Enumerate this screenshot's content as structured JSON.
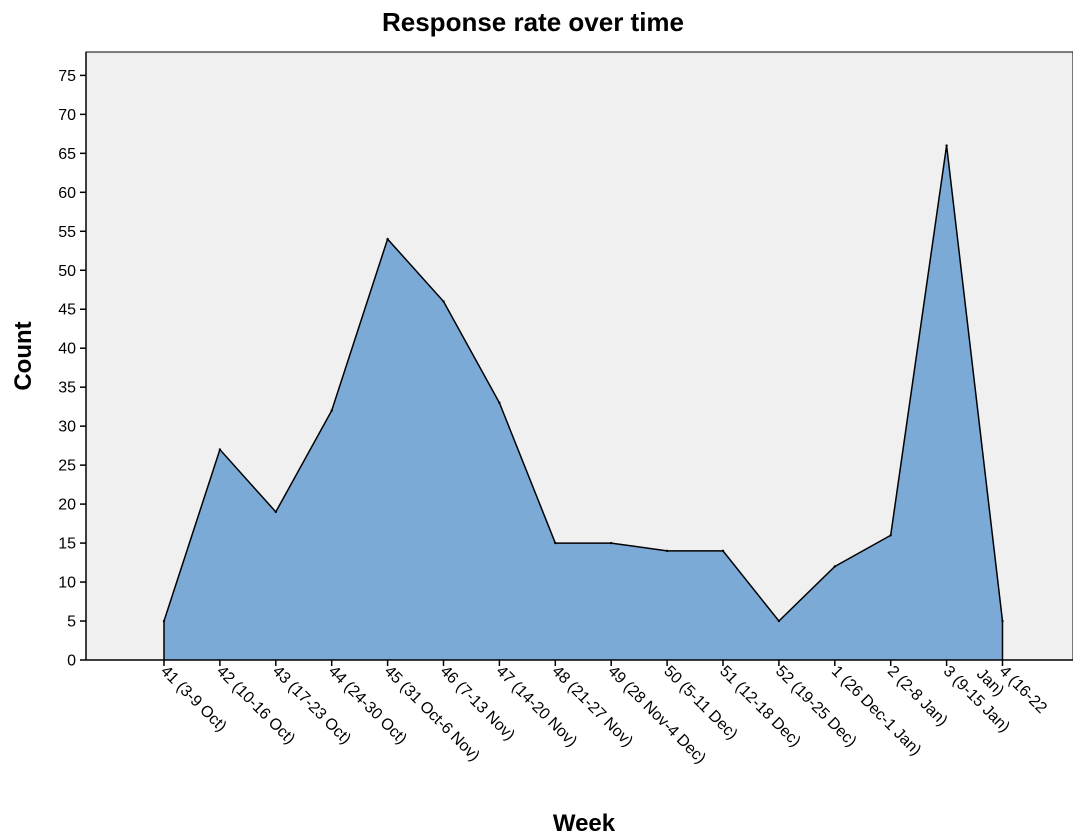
{
  "chart_data": {
    "type": "area",
    "title": "Response rate over time",
    "xlabel": "Week",
    "ylabel": "Count",
    "categories": [
      "41 (3-9 Oct)",
      "42 (10-16 Oct)",
      "43 (17-23 Oct)",
      "44 (24-30 Oct)",
      "45 (31 Oct-6 Nov)",
      "46 (7-13 Nov)",
      "47 (14-20 Nov)",
      "48 (21-27 Nov)",
      "49 (28 Nov-4 Dec)",
      "50 (5-11 Dec)",
      "51 (12-18 Dec)",
      "52 (19-25 Dec)",
      "1 (26 Dec-1 Jan)",
      "2 (2-8 Jan)",
      "3 (9-15 Jan)",
      "4 (16-22 Jan)"
    ],
    "x_tick_lines": [
      [
        "41 (3-9 Oct)"
      ],
      [
        "42 (10-16 Oct)"
      ],
      [
        "43 (17-23 Oct)"
      ],
      [
        "44 (24-30 Oct)"
      ],
      [
        "45 (31 Oct-6 Nov)"
      ],
      [
        "46 (7-13 Nov)"
      ],
      [
        "47 (14-20 Nov)"
      ],
      [
        "48 (21-27 Nov)"
      ],
      [
        "49 (28 Nov-4 Dec)"
      ],
      [
        "50 (5-11 Dec)"
      ],
      [
        "51 (12-18 Dec)"
      ],
      [
        "52 (19-25 Dec)"
      ],
      [
        "1 (26 Dec-1 Jan)"
      ],
      [
        "2 (2-8 Jan)"
      ],
      [
        "3 (9-15 Jan)"
      ],
      [
        "4 (16-22",
        "Jan)"
      ]
    ],
    "values": [
      5,
      27,
      19,
      32,
      54,
      46,
      33,
      15,
      15,
      14,
      14,
      5,
      12,
      16,
      66,
      5
    ],
    "ylim": [
      0,
      78
    ],
    "yticks": [
      0,
      5,
      10,
      15,
      20,
      25,
      30,
      35,
      40,
      45,
      50,
      55,
      60,
      65,
      70,
      75
    ],
    "grid": false,
    "colors": {
      "area_fill": "#7BAAD6",
      "line": "#000000",
      "plot_background": "#F0F0F0",
      "axis": "#000000"
    }
  }
}
